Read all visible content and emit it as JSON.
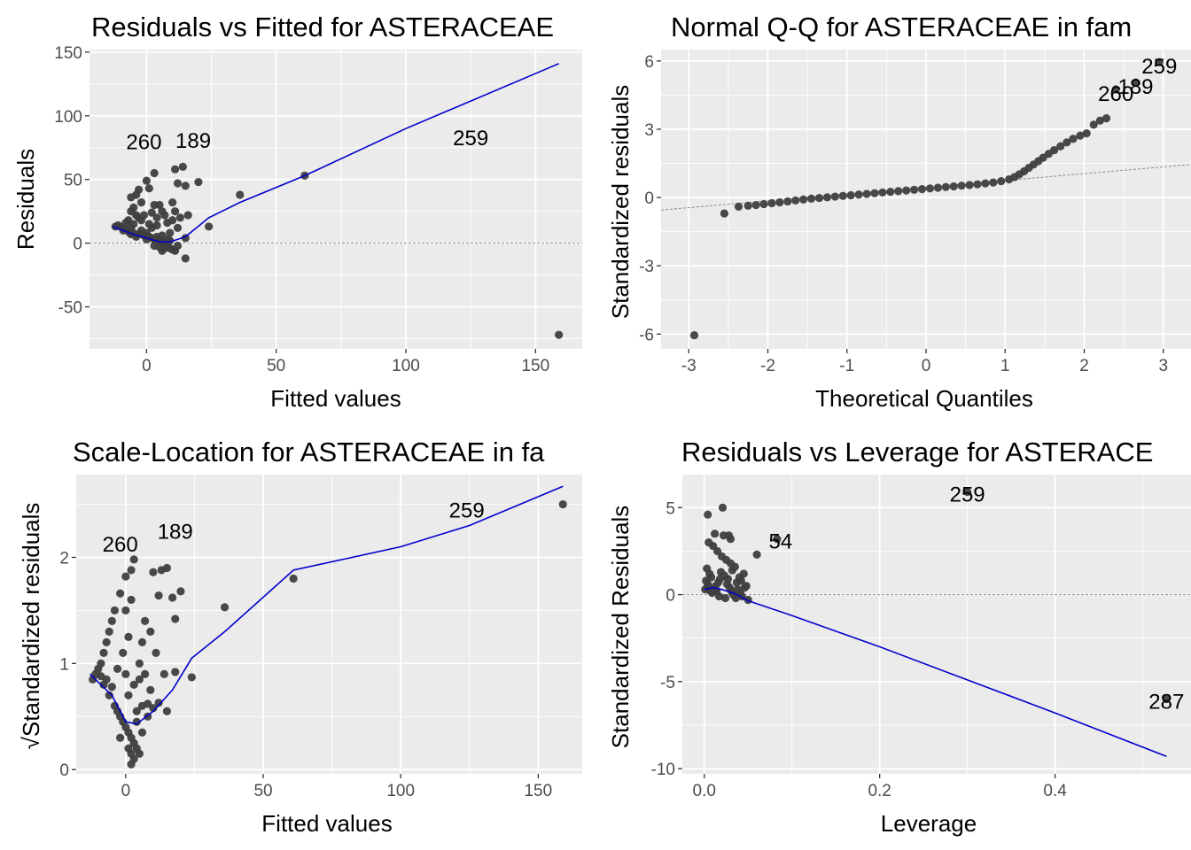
{
  "colors": {
    "panel_bg": "#ebebeb",
    "grid_major": "#ffffff",
    "points": "#3f3f3f",
    "smooth_line": "#0000cc",
    "reference_line": "#8c8c8c"
  },
  "chart_data": [
    {
      "type": "scatter",
      "title": "Residuals vs Fitted for ASTERACEAE",
      "xlabel": "Fitted values",
      "ylabel": "Residuals",
      "xticks": [
        0,
        50,
        100,
        150
      ],
      "yticks": [
        -50,
        0,
        50,
        100,
        150
      ],
      "xticklabels": [
        "0",
        "50",
        "100",
        "150"
      ],
      "yticklabels": [
        "-50",
        "0",
        "50",
        "100",
        "150"
      ],
      "xlim": [
        -22,
        168
      ],
      "ylim": [
        -83,
        152
      ],
      "grid": true,
      "reference_line": {
        "type": "horizontal",
        "y": 0
      },
      "labeled_points": [
        {
          "label": "260",
          "x": -1,
          "y": 80
        },
        {
          "label": "189",
          "x": 18,
          "y": 81
        },
        {
          "label": "259",
          "x": 125,
          "y": 83
        }
      ],
      "points": [
        [
          159,
          -72
        ],
        [
          61,
          53
        ],
        [
          36,
          38
        ],
        [
          24,
          13
        ],
        [
          15,
          -12
        ],
        [
          12,
          47
        ],
        [
          15,
          45
        ],
        [
          20,
          48
        ],
        [
          14,
          60
        ],
        [
          11,
          58
        ],
        [
          10,
          32
        ],
        [
          12,
          12
        ],
        [
          3,
          55
        ],
        [
          0,
          49
        ],
        [
          1,
          43
        ],
        [
          -3,
          42
        ],
        [
          -4,
          38
        ],
        [
          -6,
          36
        ],
        [
          -2,
          32
        ],
        [
          -5,
          28
        ],
        [
          -6,
          25
        ],
        [
          -4,
          22
        ],
        [
          -3,
          20
        ],
        [
          -2,
          18
        ],
        [
          -5,
          15
        ],
        [
          -6,
          12
        ],
        [
          -8,
          11
        ],
        [
          -10,
          13
        ],
        [
          -11,
          14
        ],
        [
          -12,
          13
        ],
        [
          -9,
          10
        ],
        [
          -7,
          9
        ],
        [
          -5,
          8
        ],
        [
          -3,
          7
        ],
        [
          -1,
          6
        ],
        [
          1,
          5
        ],
        [
          2,
          4
        ],
        [
          3,
          3
        ],
        [
          5,
          2
        ],
        [
          6,
          1
        ],
        [
          7,
          0
        ],
        [
          8,
          -2
        ],
        [
          9,
          -4
        ],
        [
          10,
          -5
        ],
        [
          11,
          -6
        ],
        [
          2,
          12
        ],
        [
          4,
          20
        ],
        [
          6,
          25
        ],
        [
          3,
          30
        ],
        [
          0,
          8
        ],
        [
          -2,
          10
        ],
        [
          5,
          -3
        ],
        [
          7,
          -4
        ],
        [
          8,
          3
        ],
        [
          9,
          8
        ],
        [
          1,
          15
        ],
        [
          -1,
          22
        ],
        [
          4,
          14
        ],
        [
          6,
          6
        ],
        [
          8,
          16
        ],
        [
          12,
          -2
        ],
        [
          13,
          20
        ],
        [
          11,
          25
        ],
        [
          -8,
          16
        ],
        [
          -7,
          18
        ],
        [
          5,
          30
        ],
        [
          7,
          22
        ],
        [
          10,
          18
        ],
        [
          3,
          -2
        ],
        [
          0,
          3
        ],
        [
          -4,
          5
        ],
        [
          -6,
          7
        ],
        [
          2,
          24
        ],
        [
          4,
          5
        ],
        [
          6,
          -6
        ],
        [
          9,
          2
        ],
        [
          15,
          4
        ],
        [
          16,
          22
        ]
      ],
      "smooth": [
        [
          -13,
          13
        ],
        [
          -5,
          7
        ],
        [
          0,
          4
        ],
        [
          5,
          1
        ],
        [
          9,
          1
        ],
        [
          15,
          5
        ],
        [
          24,
          20
        ],
        [
          36,
          32
        ],
        [
          61,
          53
        ],
        [
          100,
          90
        ],
        [
          159,
          141
        ]
      ]
    },
    {
      "type": "scatter",
      "title": "Normal Q-Q for ASTERACEAE in fam",
      "xlabel": "Theoretical Quantiles",
      "ylabel": "Standardized residuals",
      "xticks": [
        -3,
        -2,
        -1,
        0,
        1,
        2,
        3
      ],
      "yticks": [
        -6,
        -3,
        0,
        3,
        6
      ],
      "xticklabels": [
        "-3",
        "-2",
        "-1",
        "0",
        "1",
        "2",
        "3"
      ],
      "yticklabels": [
        "-6",
        "-3",
        "0",
        "3",
        "6"
      ],
      "xlim": [
        -3.35,
        3.35
      ],
      "ylim": [
        -6.65,
        6.5
      ],
      "grid": true,
      "reference_line": {
        "type": "diagonal",
        "from": [
          -3.35,
          -0.55
        ],
        "to": [
          3.35,
          1.45
        ]
      },
      "labeled_points": [
        {
          "label": "260",
          "x": 2.4,
          "y": 4.6
        },
        {
          "label": "189",
          "x": 2.65,
          "y": 4.9
        },
        {
          "label": "259",
          "x": 2.95,
          "y": 5.8
        }
      ],
      "points": [
        [
          -2.93,
          -6.05
        ],
        [
          -2.55,
          -0.7
        ],
        [
          -2.37,
          -0.4
        ],
        [
          -2.25,
          -0.36
        ],
        [
          -2.15,
          -0.33
        ],
        [
          -2.05,
          -0.29
        ],
        [
          -1.95,
          -0.25
        ],
        [
          -1.85,
          -0.21
        ],
        [
          -1.75,
          -0.17
        ],
        [
          -1.65,
          -0.13
        ],
        [
          -1.55,
          -0.09
        ],
        [
          -1.45,
          -0.05
        ],
        [
          -1.35,
          -0.02
        ],
        [
          -1.25,
          0.01
        ],
        [
          -1.15,
          0.04
        ],
        [
          -1.05,
          0.07
        ],
        [
          -0.95,
          0.1
        ],
        [
          -0.85,
          0.13
        ],
        [
          -0.75,
          0.16
        ],
        [
          -0.65,
          0.19
        ],
        [
          -0.55,
          0.22
        ],
        [
          -0.45,
          0.25
        ],
        [
          -0.35,
          0.28
        ],
        [
          -0.25,
          0.31
        ],
        [
          -0.15,
          0.34
        ],
        [
          -0.05,
          0.37
        ],
        [
          0.05,
          0.4
        ],
        [
          0.15,
          0.43
        ],
        [
          0.25,
          0.46
        ],
        [
          0.35,
          0.49
        ],
        [
          0.45,
          0.52
        ],
        [
          0.55,
          0.55
        ],
        [
          0.65,
          0.58
        ],
        [
          0.75,
          0.62
        ],
        [
          0.85,
          0.66
        ],
        [
          0.95,
          0.72
        ],
        [
          1.05,
          0.8
        ],
        [
          1.12,
          0.9
        ],
        [
          1.18,
          1.02
        ],
        [
          1.24,
          1.15
        ],
        [
          1.3,
          1.3
        ],
        [
          1.36,
          1.45
        ],
        [
          1.42,
          1.6
        ],
        [
          1.48,
          1.75
        ],
        [
          1.55,
          1.92
        ],
        [
          1.62,
          2.08
        ],
        [
          1.7,
          2.25
        ],
        [
          1.78,
          2.42
        ],
        [
          1.86,
          2.58
        ],
        [
          1.95,
          2.72
        ],
        [
          2.03,
          2.82
        ],
        [
          2.12,
          3.2
        ],
        [
          2.2,
          3.38
        ],
        [
          2.28,
          3.48
        ],
        [
          2.4,
          4.75
        ],
        [
          2.65,
          5.05
        ],
        [
          2.95,
          5.95
        ]
      ]
    },
    {
      "type": "scatter",
      "title": "Scale-Location for ASTERACEAE in fa",
      "xlabel": "Fitted values",
      "ylabel": "√Standardized residuals",
      "xticks": [
        0,
        50,
        100,
        150
      ],
      "yticks": [
        0,
        1,
        2
      ],
      "xticklabels": [
        "0",
        "50",
        "100",
        "150"
      ],
      "yticklabels": [
        "0",
        "1",
        "2"
      ],
      "xlim": [
        -18,
        166
      ],
      "ylim": [
        -0.04,
        2.78
      ],
      "grid": true,
      "labeled_points": [
        {
          "label": "260",
          "x": -2,
          "y": 2.13
        },
        {
          "label": "189",
          "x": 18,
          "y": 2.25
        },
        {
          "label": "259",
          "x": 124,
          "y": 2.45
        }
      ],
      "points": [
        [
          159,
          2.5
        ],
        [
          61,
          1.8
        ],
        [
          36,
          1.53
        ],
        [
          24,
          0.87
        ],
        [
          18,
          0.92
        ],
        [
          20,
          1.68
        ],
        [
          15,
          1.9
        ],
        [
          13,
          1.88
        ],
        [
          10,
          1.86
        ],
        [
          12,
          1.64
        ],
        [
          17,
          1.62
        ],
        [
          18,
          1.42
        ],
        [
          3,
          1.98
        ],
        [
          2,
          1.88
        ],
        [
          0,
          1.82
        ],
        [
          -2,
          1.66
        ],
        [
          -4,
          1.5
        ],
        [
          -5,
          1.4
        ],
        [
          -6,
          1.3
        ],
        [
          -7,
          1.2
        ],
        [
          -8,
          1.1
        ],
        [
          -9,
          1.0
        ],
        [
          -10,
          0.95
        ],
        [
          -11,
          0.9
        ],
        [
          -12,
          0.85
        ],
        [
          -8,
          0.8
        ],
        [
          -6,
          0.7
        ],
        [
          -4,
          0.6
        ],
        [
          -3,
          0.55
        ],
        [
          -2,
          0.5
        ],
        [
          -1,
          0.45
        ],
        [
          0,
          0.4
        ],
        [
          1,
          0.35
        ],
        [
          2,
          0.3
        ],
        [
          3,
          0.25
        ],
        [
          4,
          0.2
        ],
        [
          5,
          0.15
        ],
        [
          3,
          0.1
        ],
        [
          2,
          0.05
        ],
        [
          4,
          0.55
        ],
        [
          6,
          0.6
        ],
        [
          8,
          0.62
        ],
        [
          10,
          0.58
        ],
        [
          12,
          0.63
        ],
        [
          5,
          1.0
        ],
        [
          6,
          1.2
        ],
        [
          7,
          1.4
        ],
        [
          1,
          1.25
        ],
        [
          -1,
          1.1
        ],
        [
          3,
          0.8
        ],
        [
          7,
          0.9
        ],
        [
          9,
          1.3
        ],
        [
          11,
          1.1
        ],
        [
          15,
          0.55
        ],
        [
          14,
          0.9
        ],
        [
          -3,
          0.95
        ],
        [
          -5,
          0.78
        ],
        [
          1,
          0.7
        ],
        [
          0,
          1.5
        ],
        [
          2,
          1.6
        ],
        [
          4,
          0.45
        ],
        [
          6,
          0.35
        ],
        [
          8,
          0.5
        ],
        [
          -7,
          0.85
        ],
        [
          -9,
          0.88
        ],
        [
          5,
          0.85
        ],
        [
          9,
          0.75
        ],
        [
          1,
          0.2
        ],
        [
          2,
          0.15
        ],
        [
          -2,
          0.3
        ],
        [
          0,
          0.9
        ]
      ],
      "smooth": [
        [
          -13,
          0.9
        ],
        [
          -5,
          0.7
        ],
        [
          0,
          0.45
        ],
        [
          4,
          0.43
        ],
        [
          10,
          0.55
        ],
        [
          17,
          0.75
        ],
        [
          24,
          1.05
        ],
        [
          36,
          1.3
        ],
        [
          61,
          1.88
        ],
        [
          100,
          2.1
        ],
        [
          125,
          2.3
        ],
        [
          159,
          2.67
        ]
      ]
    },
    {
      "type": "scatter",
      "title": "Residuals vs Leverage for ASTERACE",
      "xlabel": "Leverage",
      "ylabel": "Standardized Residuals",
      "xticks": [
        0.0,
        0.2,
        0.4
      ],
      "yticks": [
        -10,
        -5,
        0,
        5
      ],
      "xticklabels": [
        "0.0",
        "0.2",
        "0.4"
      ],
      "yticklabels": [
        "-10",
        "-5",
        "0",
        "5"
      ],
      "xlim": [
        -0.025,
        0.555
      ],
      "ylim": [
        -10.3,
        6.9
      ],
      "grid": true,
      "reference_line": {
        "type": "horizontal",
        "y": 0
      },
      "labeled_points": [
        {
          "label": "259",
          "x": 0.3,
          "y": 5.8
        },
        {
          "label": "54",
          "x": 0.087,
          "y": 3.1
        },
        {
          "label": "287",
          "x": 0.527,
          "y": -6.1
        }
      ],
      "points": [
        [
          0.021,
          5.0
        ],
        [
          0.004,
          4.6
        ],
        [
          0.012,
          3.5
        ],
        [
          0.022,
          3.4
        ],
        [
          0.028,
          3.4
        ],
        [
          0.005,
          3.0
        ],
        [
          0.01,
          2.8
        ],
        [
          0.015,
          2.5
        ],
        [
          0.02,
          2.2
        ],
        [
          0.025,
          2.0
        ],
        [
          0.03,
          1.8
        ],
        [
          0.035,
          1.6
        ],
        [
          0.06,
          2.3
        ],
        [
          0.045,
          1.2
        ],
        [
          0.04,
          1.0
        ],
        [
          0.003,
          1.5
        ],
        [
          0.006,
          1.2
        ],
        [
          0.008,
          1.0
        ],
        [
          0.002,
          0.8
        ],
        [
          0.004,
          0.6
        ],
        [
          0.005,
          0.4
        ],
        [
          0.007,
          0.2
        ],
        [
          0.009,
          0.1
        ],
        [
          0.011,
          0.3
        ],
        [
          0.013,
          0.5
        ],
        [
          0.016,
          0.7
        ],
        [
          0.018,
          0.9
        ],
        [
          0.019,
          1.3
        ],
        [
          0.023,
          1.1
        ],
        [
          0.026,
          0.6
        ],
        [
          0.029,
          0.4
        ],
        [
          0.031,
          0.2
        ],
        [
          0.033,
          0.0
        ],
        [
          0.036,
          -0.2
        ],
        [
          0.038,
          0.3
        ],
        [
          0.041,
          0.1
        ],
        [
          0.043,
          -0.1
        ],
        [
          0.046,
          0.4
        ],
        [
          0.048,
          0.5
        ],
        [
          0.05,
          -0.3
        ],
        [
          0.001,
          0.3
        ],
        [
          0.014,
          0.2
        ],
        [
          0.017,
          -0.1
        ],
        [
          0.024,
          -0.2
        ],
        [
          0.027,
          0.9
        ],
        [
          0.032,
          1.4
        ],
        [
          0.037,
          0.7
        ],
        [
          0.042,
          0.8
        ],
        [
          0.03,
          3.2
        ],
        [
          0.083,
          3.2
        ],
        [
          0.3,
          5.9
        ],
        [
          0.527,
          -6.0
        ]
      ],
      "smooth": [
        [
          0.0,
          0.3
        ],
        [
          0.01,
          0.4
        ],
        [
          0.02,
          0.3
        ],
        [
          0.035,
          0.05
        ],
        [
          0.05,
          -0.35
        ],
        [
          0.1,
          -1.2
        ],
        [
          0.2,
          -3.0
        ],
        [
          0.3,
          -4.9
        ],
        [
          0.4,
          -6.8
        ],
        [
          0.527,
          -9.3
        ]
      ]
    }
  ]
}
